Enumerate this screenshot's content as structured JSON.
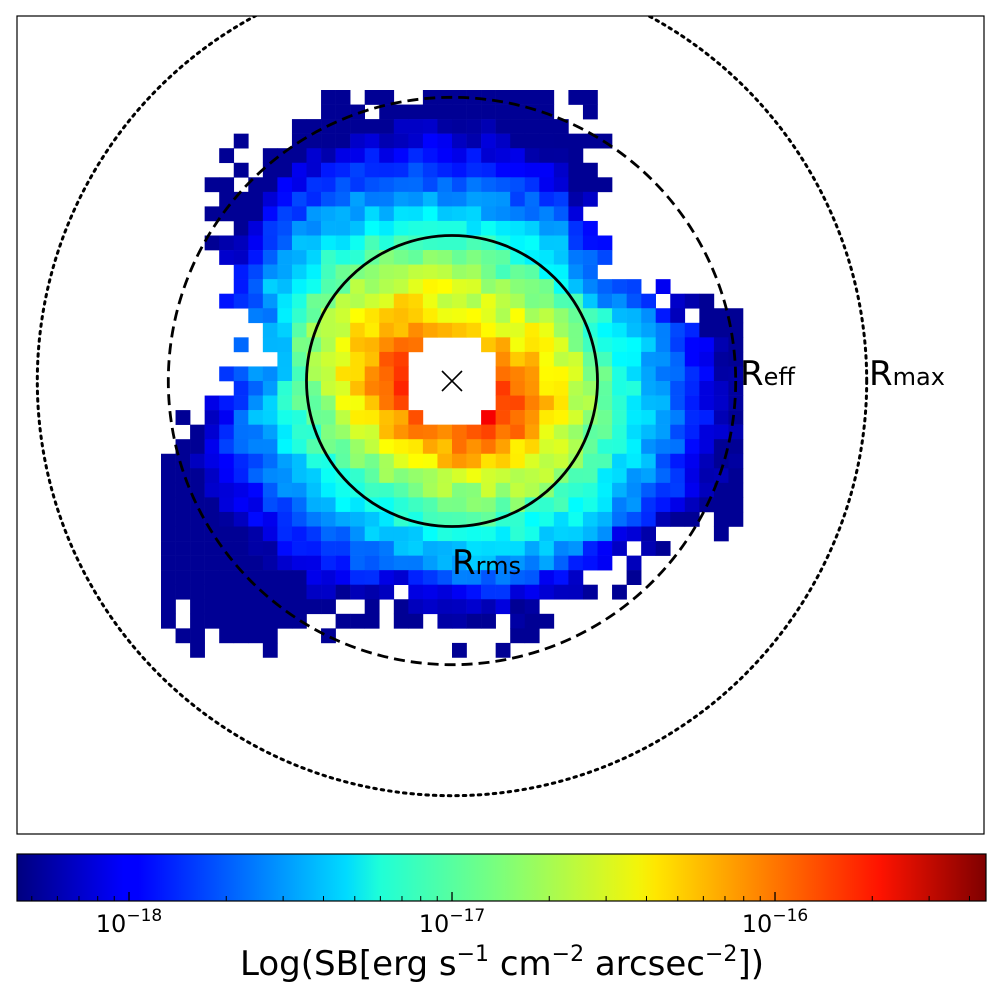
{
  "chart_data": {
    "type": "heatmap",
    "title": "",
    "colormap": "jet",
    "colorbar": {
      "label_main": "Log(SB[erg s",
      "label_exp1": "−1",
      "label_mid1": " cm",
      "label_exp2": "−2",
      "label_mid2": " arcsec",
      "label_exp3": "−2",
      "label_end": "])",
      "scale": "log",
      "range": [
        4.5e-19,
        4.5e-16
      ],
      "ticks": [
        {
          "value": 1e-18,
          "base": "10",
          "exp": "−18"
        },
        {
          "value": 1e-17,
          "base": "10",
          "exp": "−17"
        },
        {
          "value": 1e-16,
          "base": "10",
          "exp": "−16"
        }
      ]
    },
    "grid": {
      "cols": 40,
      "rows": 40,
      "center": [
        20,
        20
      ],
      "core_radius": 3.2
    },
    "circles": [
      {
        "name": "R_rms",
        "radius": 10,
        "style": "solid",
        "label": "R",
        "sub": "rms"
      },
      {
        "name": "R_eff",
        "radius": 19.5,
        "style": "dashed",
        "label": "R",
        "sub": "eff"
      },
      {
        "name": "R_max",
        "radius": 28.5,
        "style": "dotted",
        "label": "R",
        "sub": "max"
      }
    ],
    "center_marker": "x",
    "axes_ticks_visible": false
  }
}
